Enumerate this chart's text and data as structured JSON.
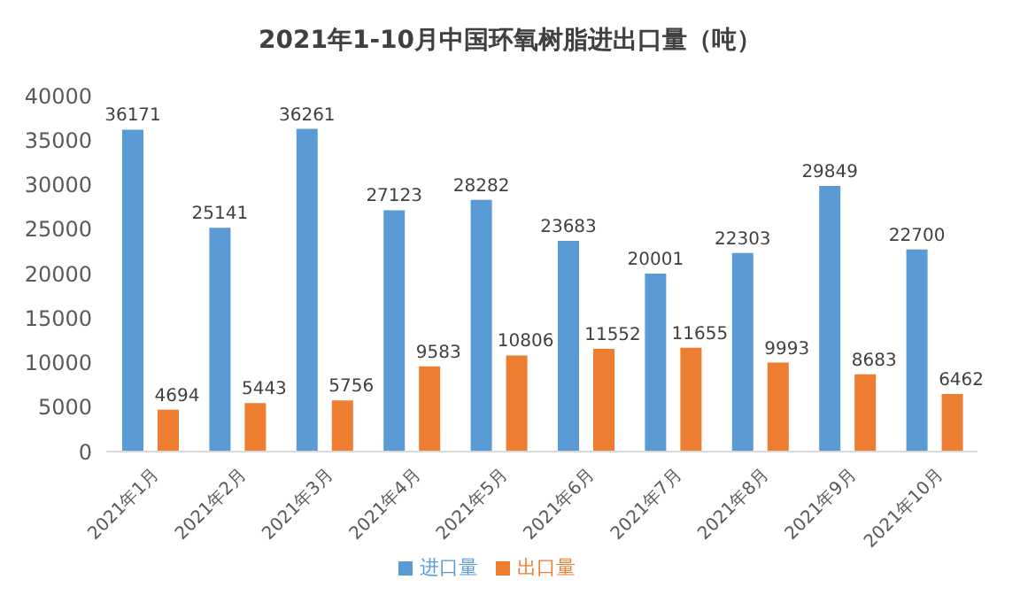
{
  "chart_data": {
    "type": "bar",
    "title": "2021年1-10月中国环氧树脂进出口量（吨）",
    "categories": [
      "2021年1月",
      "2021年2月",
      "2021年3月",
      "2021年4月",
      "2021年5月",
      "2021年6月",
      "2021年7月",
      "2021年8月",
      "2021年9月",
      "2021年10月"
    ],
    "series": [
      {
        "name": "进口量",
        "color": "#5b9bd5",
        "values": [
          36171,
          25141,
          36261,
          27123,
          28282,
          23683,
          20001,
          22303,
          29849,
          22700
        ]
      },
      {
        "name": "出口量",
        "color": "#ed7d31",
        "values": [
          4694,
          5443,
          5756,
          9583,
          10806,
          11552,
          11655,
          9993,
          8683,
          6462
        ]
      }
    ],
    "ylim": [
      0,
      40000
    ],
    "yticks": [
      0,
      5000,
      10000,
      15000,
      20000,
      25000,
      30000,
      35000,
      40000
    ],
    "grid": false,
    "legend": "bottom",
    "data_labels": true
  }
}
